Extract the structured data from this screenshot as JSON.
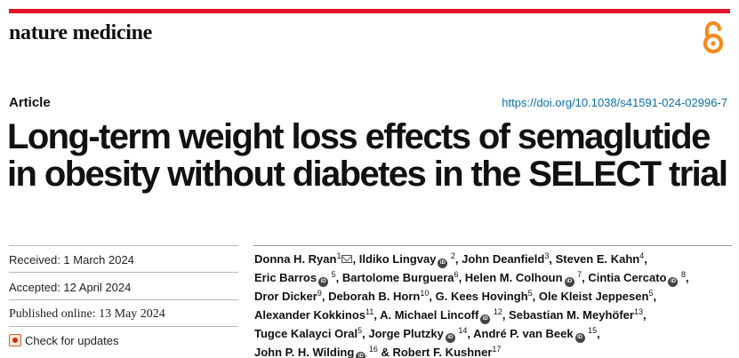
{
  "journal": "nature medicine",
  "article_type": "Article",
  "doi": "https://doi.org/10.1038/s41591-024-02996-7",
  "title_lines": [
    "Long-term weight loss effects of semaglutide",
    "in obesity without diabetes in the SELECT trial"
  ],
  "meta": {
    "received": "Received: 1 March 2024",
    "accepted": "Accepted: 12 April 2024",
    "published": "Published online: 13 May 2024",
    "check_updates": "Check for updates"
  },
  "icons": {
    "open_access": "open-access-icon",
    "check_updates": "check-for-updates-icon",
    "orcid": "orcid-icon",
    "email": "email-icon"
  },
  "colors": {
    "accent_bar": "#e3142c",
    "doi_link": "#0c6fa8"
  },
  "authors": [
    {
      "name": "Donna H. Ryan",
      "aff": "1",
      "email": true,
      "orcid": false,
      "after": ", "
    },
    {
      "name": "Ildiko Lingvay",
      "aff": "2",
      "orcid": true,
      "after": ", "
    },
    {
      "name": "John Deanfield",
      "aff": "3",
      "orcid": false,
      "after": ", "
    },
    {
      "name": "Steven E. Kahn",
      "aff": "4",
      "orcid": false,
      "after": ","
    },
    {
      "name": "Eric Barros",
      "aff": "5",
      "orcid": true,
      "after": ", "
    },
    {
      "name": "Bartolome Burguera",
      "aff": "6",
      "orcid": false,
      "after": ", "
    },
    {
      "name": "Helen M. Colhoun",
      "aff": "7",
      "orcid": true,
      "after": ", "
    },
    {
      "name": "Cintia Cercato",
      "aff": "8",
      "orcid": true,
      "after": ","
    },
    {
      "name": "Dror Dicker",
      "aff": "9",
      "orcid": false,
      "after": ", "
    },
    {
      "name": "Deborah B. Horn",
      "aff": "10",
      "orcid": false,
      "after": ", "
    },
    {
      "name": "G. Kees Hovingh",
      "aff": "5",
      "orcid": false,
      "after": ", "
    },
    {
      "name": "Ole Kleist Jeppesen",
      "aff": "5",
      "orcid": false,
      "after": ","
    },
    {
      "name": "Alexander Kokkinos",
      "aff": "11",
      "orcid": false,
      "after": ", "
    },
    {
      "name": "A. Michael Lincoff",
      "aff": "12",
      "orcid": true,
      "after": ", "
    },
    {
      "name": "Sebastian M. Meyhöfer",
      "aff": "13",
      "orcid": false,
      "after": ","
    },
    {
      "name": "Tugce Kalayci Oral",
      "aff": "5",
      "orcid": false,
      "after": ", "
    },
    {
      "name": "Jorge Plutzky",
      "aff": "14",
      "orcid": true,
      "after": ", "
    },
    {
      "name": "André P. van Beek",
      "aff": "15",
      "orcid": true,
      "after": ","
    },
    {
      "name": "John P. H. Wilding",
      "aff": "16",
      "orcid": true,
      "after": " & "
    },
    {
      "name": "Robert F. Kushner",
      "aff": "17",
      "orcid": false,
      "after": ""
    }
  ],
  "author_line_breaks": [
    4,
    8,
    12,
    15,
    18
  ]
}
